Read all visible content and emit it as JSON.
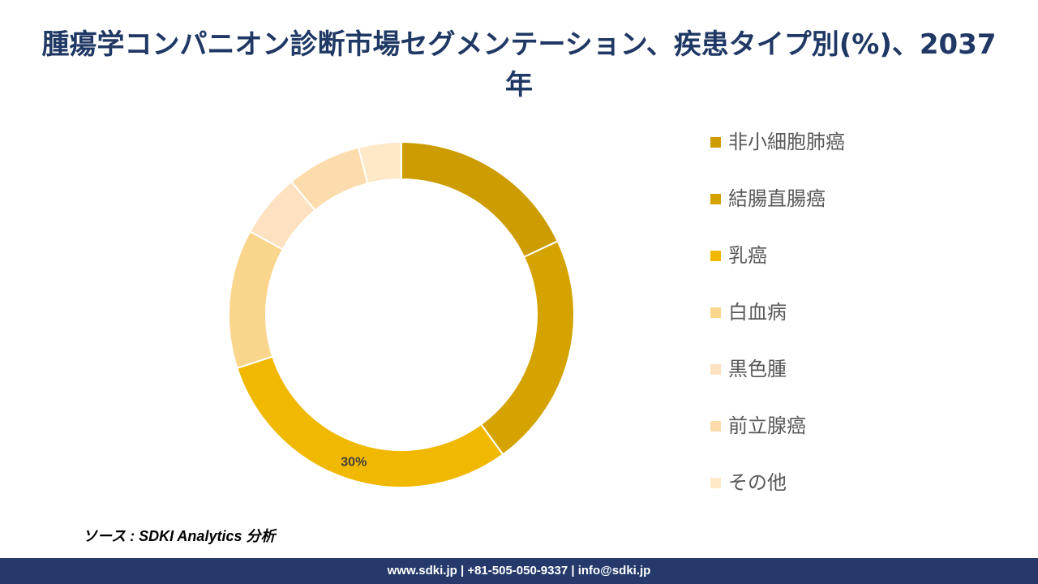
{
  "title": "腫瘍学コンパニオン診断市場セグメンテーション、疾患タイプ別(%)、2037年",
  "chart_data": {
    "type": "pie",
    "donut": true,
    "categories": [
      "非小細胞肺癌",
      "結腸直腸癌",
      "乳癌",
      "白血病",
      "黒色腫",
      "前立腺癌",
      "その他"
    ],
    "values": [
      18,
      22,
      30,
      13,
      6,
      7,
      4
    ],
    "colors": [
      "#cc9c00",
      "#d4a300",
      "#f1b800",
      "#fad58c",
      "#fde1c0",
      "#fcdcad",
      "#fde8c8"
    ],
    "data_labels": [
      "",
      "",
      "30%",
      "",
      "",
      "",
      ""
    ],
    "legend_position": "right"
  },
  "source": "ソース : SDKI Analytics 分析",
  "footer": "www.sdki.jp | +81-505-050-9337 | info@sdki.jp"
}
